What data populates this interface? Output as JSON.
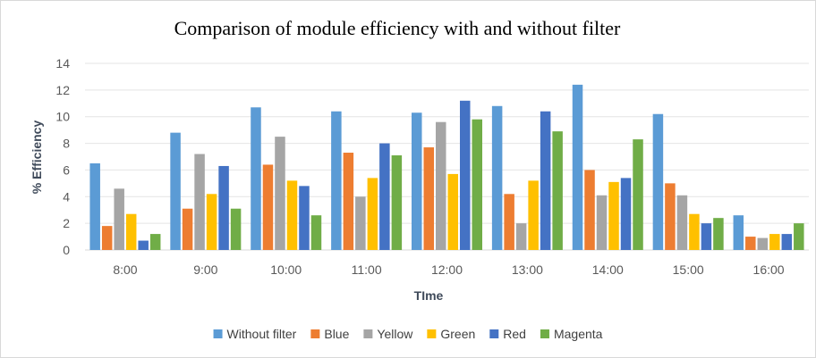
{
  "chart_data": {
    "type": "bar",
    "title": "Comparison of module efficiency with and without filter",
    "xlabel": "TIme",
    "ylabel": "% Efficiency",
    "ylim": [
      0,
      14
    ],
    "yticks": [
      0,
      2,
      4,
      6,
      8,
      10,
      12,
      14
    ],
    "grid": true,
    "legend_position": "bottom",
    "categories": [
      "8:00",
      "9:00",
      "10:00",
      "11:00",
      "12:00",
      "13:00",
      "14:00",
      "15:00",
      "16:00"
    ],
    "series": [
      {
        "name": "Without filter",
        "color": "#5b9bd5",
        "values": [
          6.5,
          8.8,
          10.7,
          10.4,
          10.3,
          10.8,
          12.4,
          10.2,
          2.6
        ]
      },
      {
        "name": "Blue",
        "color": "#ed7d31",
        "values": [
          1.8,
          3.1,
          6.4,
          7.3,
          7.7,
          4.2,
          6.0,
          5.0,
          1.0
        ]
      },
      {
        "name": "Yellow",
        "color": "#a5a5a5",
        "values": [
          4.6,
          7.2,
          8.5,
          4.0,
          9.6,
          2.0,
          4.1,
          4.1,
          0.9
        ]
      },
      {
        "name": "Green",
        "color": "#ffc000",
        "values": [
          2.7,
          4.2,
          5.2,
          5.4,
          5.7,
          5.2,
          5.1,
          2.7,
          1.2
        ]
      },
      {
        "name": "Red",
        "color": "#4472c4",
        "values": [
          0.7,
          6.3,
          4.8,
          8.0,
          11.2,
          10.4,
          5.4,
          2.0,
          1.2
        ]
      },
      {
        "name": "Magenta",
        "color": "#70ad47",
        "values": [
          1.2,
          3.1,
          2.6,
          7.1,
          9.8,
          8.9,
          8.3,
          2.4,
          2.0
        ]
      }
    ]
  }
}
